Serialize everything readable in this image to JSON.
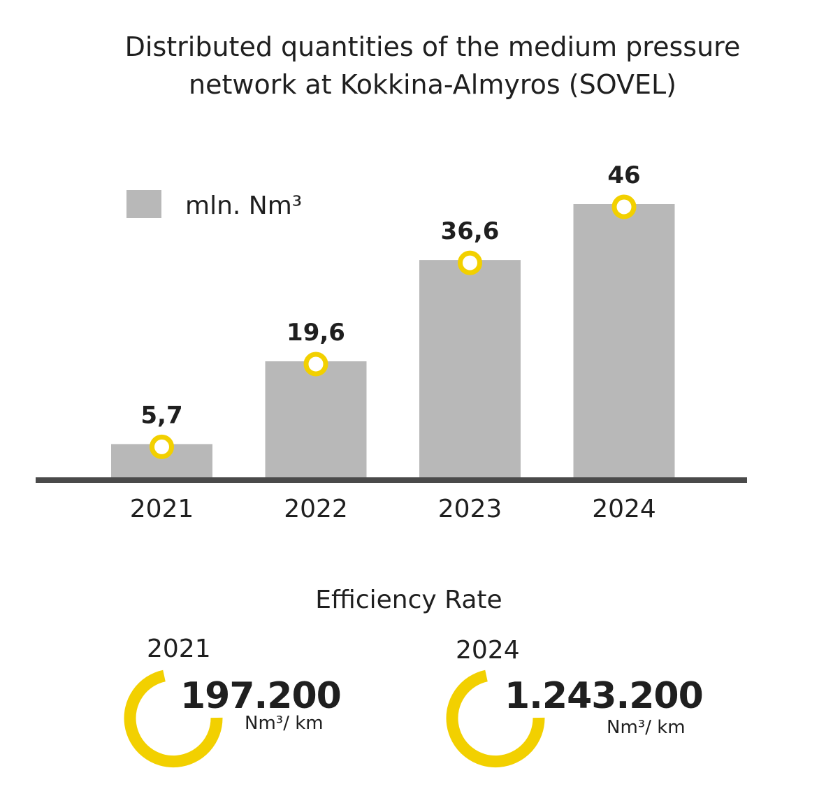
{
  "chart_data": {
    "type": "bar",
    "title_lines": [
      "Distributed quantities of the medium pressure",
      "network at Kokkina-Almyros (SOVEL)"
    ],
    "categories": [
      "2021",
      "2022",
      "2023",
      "2024"
    ],
    "series": [
      {
        "name": "mln. Nm³",
        "values": [
          5.7,
          19.6,
          36.6,
          46
        ]
      }
    ],
    "data_labels": [
      "5,7",
      "19,6",
      "36,6",
      "46"
    ],
    "legend": {
      "label": "mln. Nm³",
      "placement": "top-left"
    },
    "ylim": [
      0,
      46
    ],
    "grid": false,
    "colors": {
      "bar": "#b8b8b8",
      "marker": "#f2d000",
      "axis": "#4a4a4a"
    }
  },
  "efficiency": {
    "title": "Efficiency Rate",
    "items": [
      {
        "year": "2021",
        "value": "197.200",
        "unit": "Nm³/ km"
      },
      {
        "year": "2024",
        "value": "1.243.200",
        "unit": "Nm³/ km"
      }
    ],
    "colors": {
      "ring": "#f2d000"
    }
  }
}
